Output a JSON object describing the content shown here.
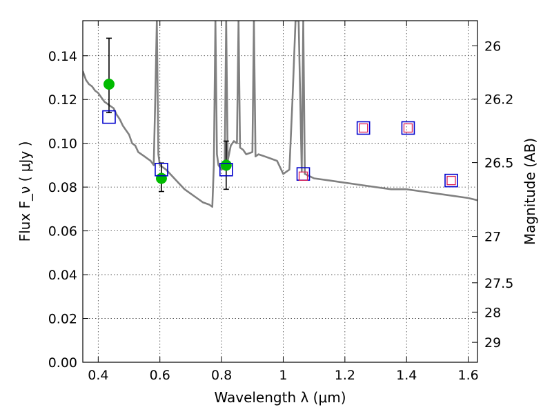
{
  "chart_data": {
    "type": "scatter",
    "xlabel": "Wavelength  λ (μm)",
    "ylabel": "Flux  F_ν  ( μJy )",
    "y2label": "Magnitude (AB)",
    "xlim": [
      0.35,
      1.63
    ],
    "ylim": [
      0.0,
      0.156
    ],
    "grid": true,
    "x_ticks": [
      0.4,
      0.6,
      0.8,
      1.0,
      1.2,
      1.4,
      1.6
    ],
    "x_tick_labels": [
      "0.4",
      "0.6",
      "0.8",
      "1",
      "1.2",
      "1.4",
      "1.6"
    ],
    "y_ticks": [
      0.0,
      0.02,
      0.04,
      0.06,
      0.08,
      0.1,
      0.12,
      0.14
    ],
    "y_tick_labels": [
      "0.00",
      "0.02",
      "0.04",
      "0.06",
      "0.08",
      "0.10",
      "0.12",
      "0.14"
    ],
    "y2_ticks": [
      {
        "label": "26",
        "flux": 0.1445
      },
      {
        "label": "26.2",
        "flux": 0.1202
      },
      {
        "label": "26.5",
        "flux": 0.0912
      },
      {
        "label": "27",
        "flux": 0.0575
      },
      {
        "label": "27.5",
        "flux": 0.0363
      },
      {
        "label": "28",
        "flux": 0.0229
      },
      {
        "label": "29",
        "flux": 0.0091
      }
    ],
    "series": [
      {
        "kind": "line",
        "color": "#808080",
        "x": [
          0.35,
          0.36,
          0.37,
          0.38,
          0.39,
          0.4,
          0.41,
          0.42,
          0.43,
          0.44,
          0.45,
          0.46,
          0.47,
          0.48,
          0.49,
          0.5,
          0.51,
          0.52,
          0.53,
          0.54,
          0.55,
          0.56,
          0.57,
          0.58,
          0.585,
          0.59,
          0.595,
          0.6,
          0.62,
          0.64,
          0.66,
          0.68,
          0.7,
          0.72,
          0.74,
          0.76,
          0.77,
          0.775,
          0.78,
          0.785,
          0.79,
          0.8,
          0.81,
          0.815,
          0.82,
          0.83,
          0.84,
          0.85,
          0.855,
          0.86,
          0.87,
          0.88,
          0.9,
          0.905,
          0.91,
          0.92,
          0.94,
          0.96,
          0.98,
          1.0,
          1.02,
          1.03,
          1.04,
          1.05,
          1.06,
          1.065,
          1.07,
          1.1,
          1.15,
          1.2,
          1.25,
          1.3,
          1.35,
          1.4,
          1.45,
          1.5,
          1.55,
          1.6,
          1.63
        ],
        "y": [
          0.133,
          0.129,
          0.127,
          0.126,
          0.124,
          0.123,
          0.121,
          0.119,
          0.118,
          0.117,
          0.116,
          0.113,
          0.111,
          0.108,
          0.106,
          0.104,
          0.1,
          0.099,
          0.096,
          0.095,
          0.094,
          0.093,
          0.092,
          0.09,
          0.12,
          0.156,
          0.095,
          0.09,
          0.088,
          0.085,
          0.082,
          0.079,
          0.077,
          0.075,
          0.073,
          0.072,
          0.071,
          0.09,
          0.156,
          0.095,
          0.09,
          0.088,
          0.089,
          0.156,
          0.092,
          0.099,
          0.101,
          0.1,
          0.156,
          0.098,
          0.097,
          0.095,
          0.096,
          0.156,
          0.094,
          0.095,
          0.094,
          0.093,
          0.092,
          0.086,
          0.088,
          0.12,
          0.156,
          0.156,
          0.087,
          0.156,
          0.086,
          0.084,
          0.083,
          0.082,
          0.081,
          0.08,
          0.079,
          0.079,
          0.078,
          0.077,
          0.076,
          0.075,
          0.074
        ]
      },
      {
        "kind": "points",
        "color": "#00bb00",
        "x": [
          0.435,
          0.605,
          0.815
        ],
        "y": [
          0.127,
          0.084,
          0.09
        ],
        "err": [
          [
            0.021,
            0.013
          ],
          [
            0.007,
            0.006
          ],
          [
            0.011,
            0.011
          ]
        ]
      },
      {
        "kind": "squares",
        "color": "#0000cc",
        "x": [
          0.435,
          0.605,
          0.815,
          1.065,
          1.26,
          1.405,
          1.545
        ],
        "y": [
          0.112,
          0.088,
          0.088,
          0.086,
          0.107,
          0.107,
          0.083
        ]
      },
      {
        "kind": "squares",
        "color": "#dd2255",
        "x": [
          1.065,
          1.26,
          1.405,
          1.545
        ],
        "y": [
          0.085,
          0.107,
          0.107,
          0.083
        ]
      }
    ]
  }
}
